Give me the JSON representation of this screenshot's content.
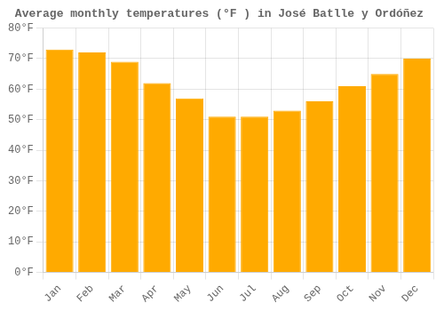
{
  "chart_data": {
    "type": "bar",
    "title": "Average monthly temperatures (°F ) in José Batlle y Ordóñez",
    "categories": [
      "Jan",
      "Feb",
      "Mar",
      "Apr",
      "May",
      "Jun",
      "Jul",
      "Aug",
      "Sep",
      "Oct",
      "Nov",
      "Dec"
    ],
    "values": [
      73,
      72,
      69,
      62,
      57,
      51,
      51,
      53,
      56,
      61,
      65,
      70
    ],
    "color": "#FFAA00",
    "ylim": [
      0,
      80
    ],
    "yticks": [
      {
        "value": 0,
        "label": "0°F"
      },
      {
        "value": 10,
        "label": "10°F"
      },
      {
        "value": 20,
        "label": "20°F"
      },
      {
        "value": 30,
        "label": "30°F"
      },
      {
        "value": 40,
        "label": "40°F"
      },
      {
        "value": 50,
        "label": "50°F"
      },
      {
        "value": 60,
        "label": "60°F"
      },
      {
        "value": 70,
        "label": "70°F"
      },
      {
        "value": 80,
        "label": "80°F"
      }
    ],
    "grid": true
  }
}
